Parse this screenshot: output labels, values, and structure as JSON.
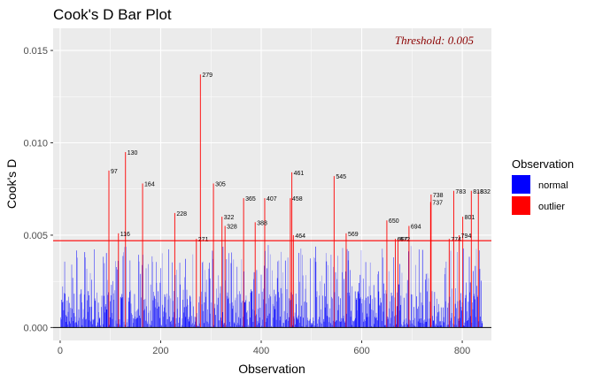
{
  "chart_data": {
    "type": "bar",
    "title": "Cook's D Bar Plot",
    "xlabel": "Observation",
    "ylabel": "Cook's D",
    "xlim": [
      -14,
      858
    ],
    "ylim": [
      -0.0007,
      0.0162
    ],
    "x_ticks": [
      0,
      200,
      400,
      600,
      800
    ],
    "y_ticks": [
      0.0,
      0.005,
      0.01,
      0.015
    ],
    "y_tick_labels": [
      "0.000",
      "0.005",
      "0.010",
      "0.015"
    ],
    "grid": true,
    "threshold": 0.0047,
    "threshold_label": "Threshold: 0.005",
    "n_observations": 840,
    "legend": {
      "title": "Observation",
      "position": "right",
      "items": [
        {
          "label": "normal",
          "color": "#0000ff"
        },
        {
          "label": "outlier",
          "color": "#ff0000"
        }
      ]
    },
    "colors": {
      "normal": "#0000ff",
      "outlier": "#ff0000",
      "threshold_line": "#ff0000",
      "threshold_text": "#8b0000",
      "panel_bg": "#ebebeb",
      "grid": "#ffffff"
    },
    "outliers": [
      {
        "obs": 97,
        "value": 0.0085
      },
      {
        "obs": 116,
        "value": 0.0051
      },
      {
        "obs": 130,
        "value": 0.0095
      },
      {
        "obs": 164,
        "value": 0.0078
      },
      {
        "obs": 228,
        "value": 0.0062
      },
      {
        "obs": 271,
        "value": 0.0048
      },
      {
        "obs": 279,
        "value": 0.0137
      },
      {
        "obs": 305,
        "value": 0.0078
      },
      {
        "obs": 322,
        "value": 0.006
      },
      {
        "obs": 328,
        "value": 0.0055
      },
      {
        "obs": 365,
        "value": 0.007
      },
      {
        "obs": 388,
        "value": 0.0057
      },
      {
        "obs": 407,
        "value": 0.007
      },
      {
        "obs": 458,
        "value": 0.007
      },
      {
        "obs": 461,
        "value": 0.0084
      },
      {
        "obs": 464,
        "value": 0.005
      },
      {
        "obs": 545,
        "value": 0.0082
      },
      {
        "obs": 569,
        "value": 0.0051
      },
      {
        "obs": 650,
        "value": 0.0058
      },
      {
        "obs": 667,
        "value": 0.0048
      },
      {
        "obs": 672,
        "value": 0.0048
      },
      {
        "obs": 694,
        "value": 0.0055
      },
      {
        "obs": 737,
        "value": 0.0068
      },
      {
        "obs": 738,
        "value": 0.0072
      },
      {
        "obs": 774,
        "value": 0.0048
      },
      {
        "obs": 783,
        "value": 0.0074
      },
      {
        "obs": 794,
        "value": 0.005
      },
      {
        "obs": 801,
        "value": 0.006
      },
      {
        "obs": 818,
        "value": 0.0074
      },
      {
        "obs": 832,
        "value": 0.0074
      }
    ]
  }
}
